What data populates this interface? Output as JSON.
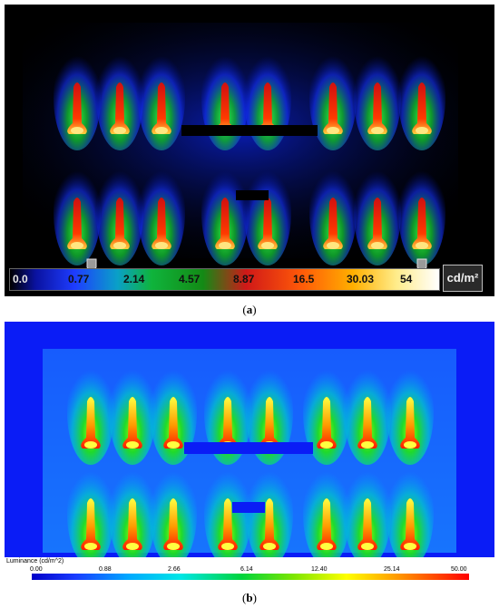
{
  "panel_a": {
    "caption": "(a)",
    "caption_letter": "a",
    "unit_label": "cd/m²",
    "colorbar_ticks": [
      "0.0",
      "0.77",
      "2.14",
      "4.57",
      "8.87",
      "16.5",
      "30.03",
      "54"
    ],
    "colors": {
      "background": "#000000",
      "glow": "#1e3cff",
      "hot": "#ff2a00",
      "core": "#ffe680"
    }
  },
  "panel_b": {
    "caption": "(b)",
    "caption_letter": "b",
    "legend_title": "Luminance (cd/m^2)",
    "legend_ticks": [
      "0.00",
      "0.88",
      "2.66",
      "6.14",
      "12.40",
      "25.14",
      "50.00"
    ],
    "colors": {
      "background": "#0a1cf6",
      "glow": "#20e020",
      "hot": "#ff3000",
      "core": "#ffff40"
    }
  }
}
